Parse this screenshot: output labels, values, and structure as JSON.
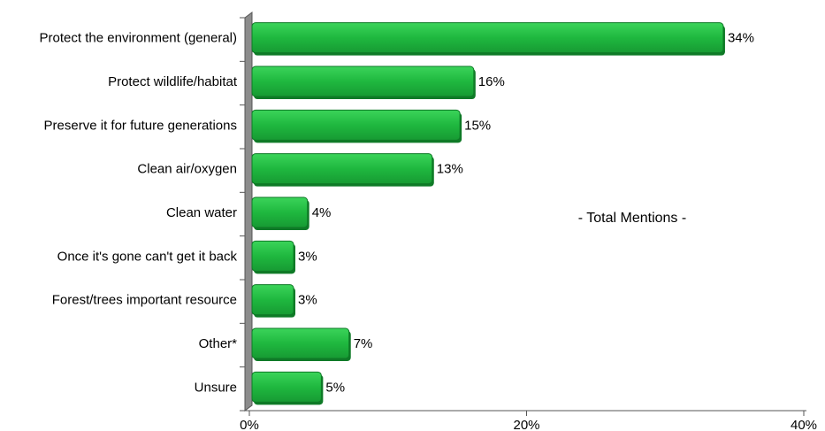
{
  "chart_data": {
    "type": "bar",
    "orientation": "horizontal",
    "categories": [
      "Protect the environment (general)",
      "Protect wildlife/habitat",
      "Preserve it for future generations",
      "Clean air/oxygen",
      "Clean water",
      "Once it's gone can't get it back",
      "Forest/trees important resource",
      "Other*",
      "Unsure"
    ],
    "values": [
      34,
      16,
      15,
      13,
      4,
      3,
      3,
      7,
      5
    ],
    "value_labels": [
      "34%",
      "16%",
      "15%",
      "13%",
      "4%",
      "3%",
      "3%",
      "7%",
      "5%"
    ],
    "xlim": [
      0,
      40
    ],
    "x_ticks": [
      0,
      20,
      40
    ],
    "x_tick_labels": [
      "0%",
      "20%",
      "40%"
    ],
    "annotation": "- Total Mentions -",
    "grid": false,
    "bar_color": "#1fb83f",
    "bar_edge_color": "#0f7a27",
    "wall_color": "#8c8c8c"
  }
}
